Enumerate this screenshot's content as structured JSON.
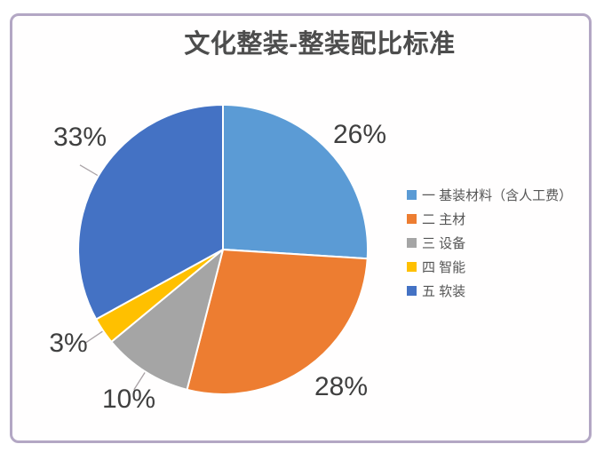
{
  "frame": {
    "border_color": "#b3a7c4"
  },
  "chart_data": {
    "type": "pie",
    "title": "文化整装-整装配比标准",
    "legend_position": "right",
    "start_angle_deg": 0,
    "direction": "clockwise",
    "total": 100,
    "slices": [
      {
        "name": "一 基装材料（含人工费）",
        "value": 26,
        "pct_label": "26%",
        "color": "#5B9BD5",
        "leader_line": false
      },
      {
        "name": "二 主材",
        "value": 28,
        "pct_label": "28%",
        "color": "#ED7D31",
        "leader_line": false
      },
      {
        "name": "三 设备",
        "value": 10,
        "pct_label": "10%",
        "color": "#A5A5A5",
        "leader_line": true
      },
      {
        "name": "四 智能",
        "value": 3,
        "pct_label": "3%",
        "color": "#FFC000",
        "leader_line": true
      },
      {
        "name": "五 软装",
        "value": 33,
        "pct_label": "33%",
        "color": "#4472C4",
        "leader_line": true
      }
    ],
    "leader_line_color": "#a9a2a6",
    "slice_border_color": "#ffffff",
    "label_color": "#3f3f3f",
    "title_color": "#4d4d4d"
  }
}
